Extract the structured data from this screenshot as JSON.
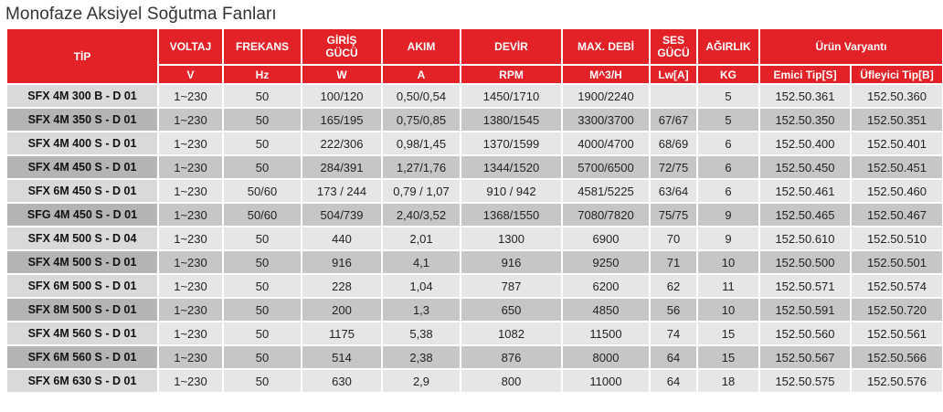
{
  "title": "Monofaze Aksiyel Soğutma Fanları",
  "columns": [
    {
      "label": "TİP",
      "unit": ""
    },
    {
      "label": "VOLTAJ",
      "unit": "V"
    },
    {
      "label": "FREKANS",
      "unit": "Hz"
    },
    {
      "label": "GİRİŞ GÜCÜ",
      "unit": "W"
    },
    {
      "label": "AKIM",
      "unit": "A"
    },
    {
      "label": "DEVİR",
      "unit": "RPM"
    },
    {
      "label": "MAX. DEBİ",
      "unit": "M^3/H"
    },
    {
      "label": "SES GÜCÜ",
      "unit": "Lw[A]"
    },
    {
      "label": "AĞIRLIK",
      "unit": "KG"
    }
  ],
  "variant_group": {
    "label": "Ürün Varyantı",
    "sub_labels": [
      "Emici Tip[S]",
      "Üfleyici Tip[B]"
    ]
  },
  "rows": [
    [
      "SFX 4M 300 B - D 01",
      "1~230",
      "50",
      "100/120",
      "0,50/0,54",
      "1450/1710",
      "1900/2240",
      "",
      "5",
      "152.50.361",
      "152.50.360"
    ],
    [
      "SFX 4M 350 S - D 01",
      "1~230",
      "50",
      "165/195",
      "0,75/0,85",
      "1380/1545",
      "3300/3700",
      "67/67",
      "5",
      "152.50.350",
      "152.50.351"
    ],
    [
      "SFX 4M 400 S - D 01",
      "1~230",
      "50",
      "222/306",
      "0,98/1,45",
      "1370/1599",
      "4000/4700",
      "68/69",
      "6",
      "152.50.400",
      "152.50.401"
    ],
    [
      "SFX 4M 450 S - D 01",
      "1~230",
      "50",
      "284/391",
      "1,27/1,76",
      "1344/1520",
      "5700/6500",
      "72/75",
      "6",
      "152.50.450",
      "152.50.451"
    ],
    [
      "SFX 6M 450 S - D 01",
      "1~230",
      "50/60",
      "173 / 244",
      "0,79 / 1,07",
      "910 / 942",
      "4581/5225",
      "63/64",
      "6",
      "152.50.461",
      "152.50.460"
    ],
    [
      "SFG 4M 450 S - D 01",
      "1~230",
      "50/60",
      "504/739",
      "2,40/3,52",
      "1368/1550",
      "7080/7820",
      "75/75",
      "9",
      "152.50.465",
      "152.50.467"
    ],
    [
      "SFX 4M 500 S - D 04",
      "1~230",
      "50",
      "440",
      "2,01",
      "1300",
      "6900",
      "70",
      "9",
      "152.50.610",
      "152.50.510"
    ],
    [
      "SFX 4M 500 S - D 01",
      "1~230",
      "50",
      "916",
      "4,1",
      "916",
      "9250",
      "71",
      "10",
      "152.50.500",
      "152.50.501"
    ],
    [
      "SFX 6M 500 S - D 01",
      "1~230",
      "50",
      "228",
      "1,04",
      "787",
      "6200",
      "62",
      "11",
      "152.50.571",
      "152.50.574"
    ],
    [
      "SFX 8M 500 S - D 01",
      "1~230",
      "50",
      "200",
      "1,3",
      "650",
      "4850",
      "56",
      "10",
      "152.50.591",
      "152.50.720"
    ],
    [
      "SFX 4M 560 S - D 01",
      "1~230",
      "50",
      "1175",
      "5,38",
      "1082",
      "11500",
      "74",
      "15",
      "152.50.560",
      "152.50.561"
    ],
    [
      "SFX 6M 560 S - D 01",
      "1~230",
      "50",
      "514",
      "2,38",
      "876",
      "8000",
      "64",
      "15",
      "152.50.567",
      "152.50.566"
    ],
    [
      "SFX 6M 630 S - D 01",
      "1~230",
      "50",
      "630",
      "2,9",
      "800",
      "11000",
      "64",
      "18",
      "152.50.575",
      "152.50.576"
    ]
  ],
  "colors": {
    "header_bg": "#e32227",
    "header_text": "#ffffff",
    "row_light": "#e6e6e6",
    "row_dark": "#c6c6c6"
  }
}
